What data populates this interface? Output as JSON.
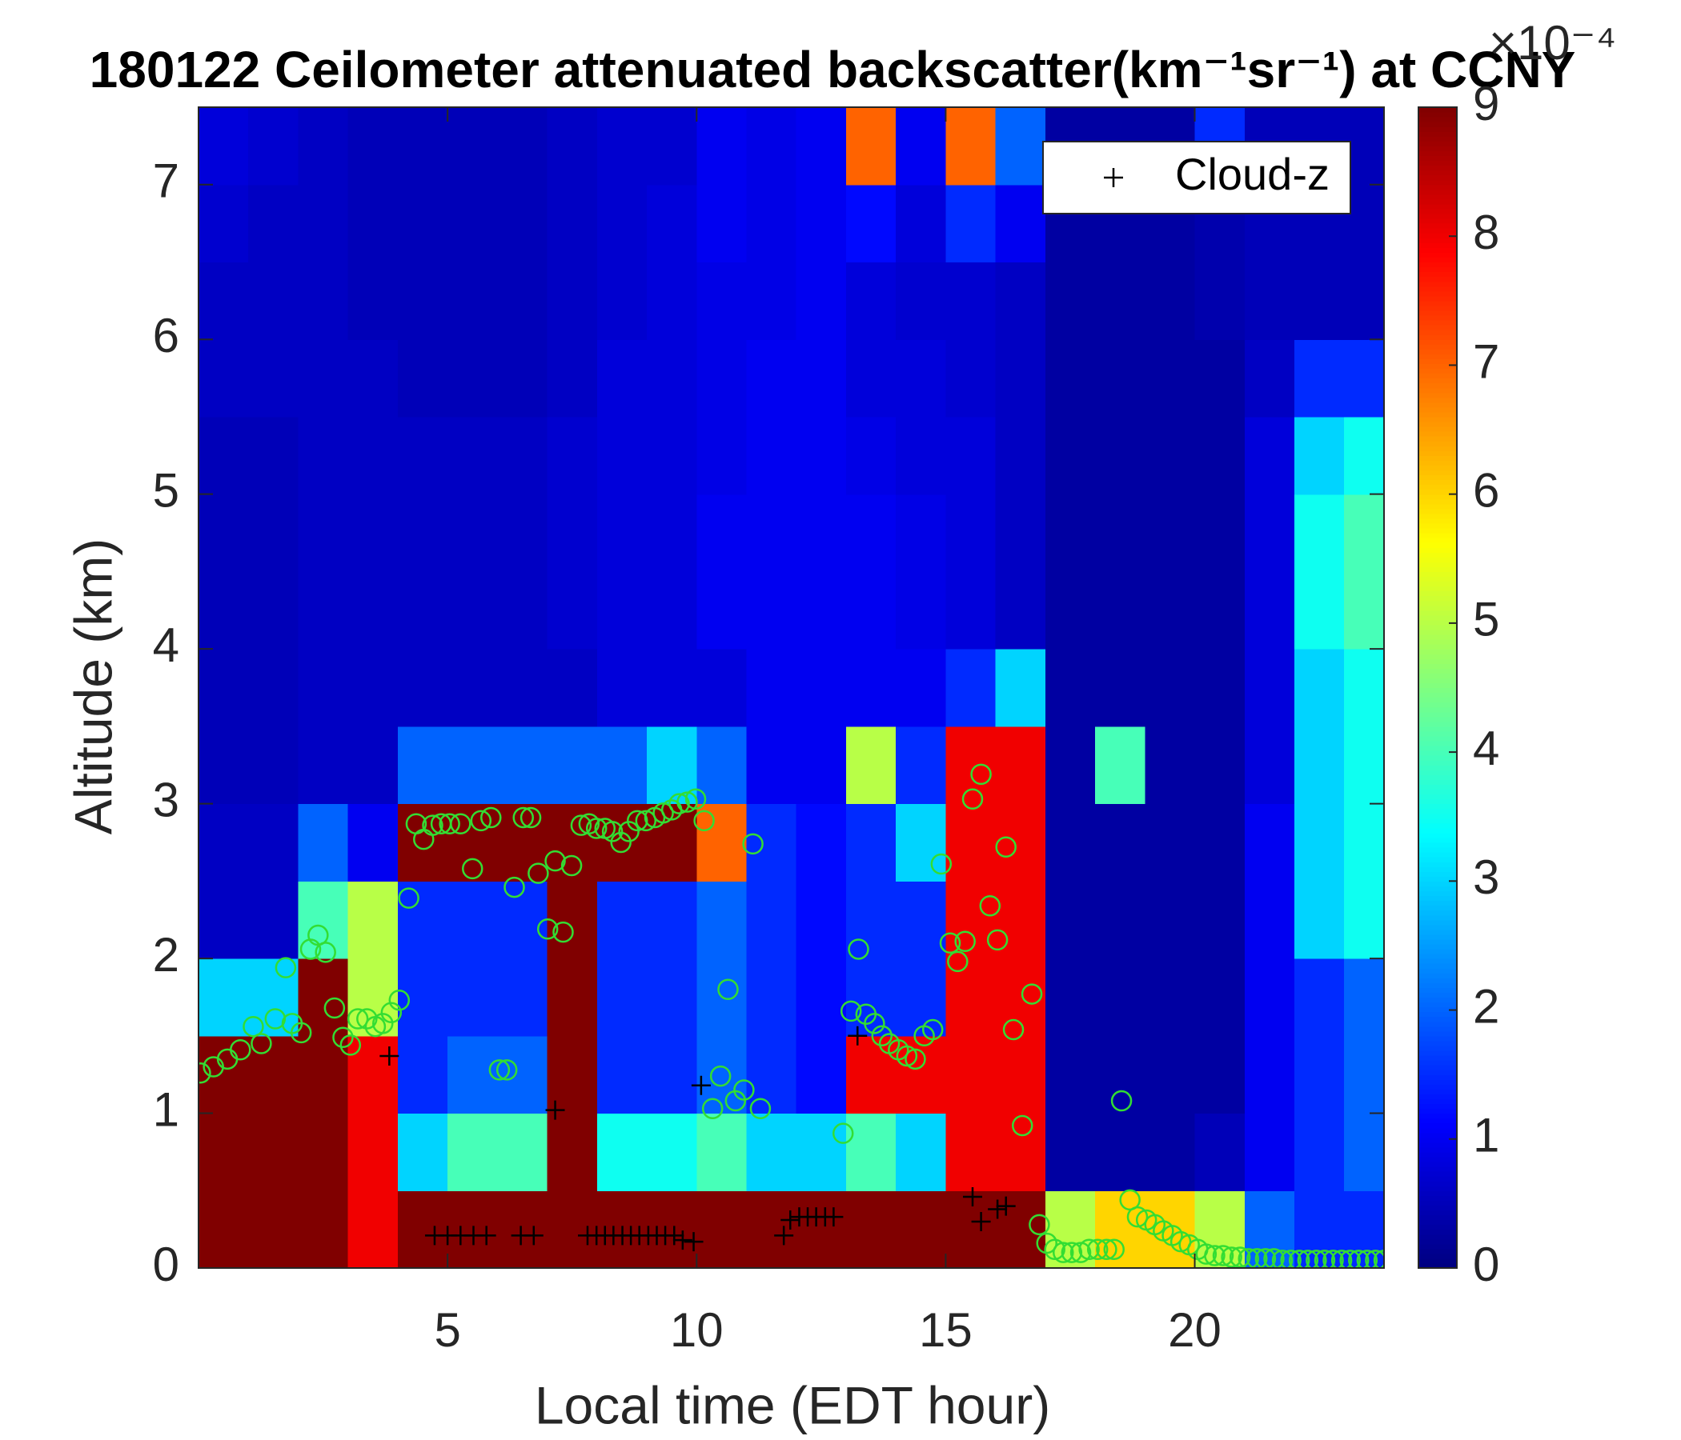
{
  "chart_data": {
    "type": "heatmap",
    "title": "180122 Ceilometer attenuated backscatter(km⁻¹sr⁻¹) at CCNY",
    "x_label": "Local time (EDT hour)",
    "y_label": "Altitude (km)",
    "xlim": [
      0,
      23.8
    ],
    "ylim": [
      0,
      7.5
    ],
    "xticks": [
      5,
      10,
      15,
      20
    ],
    "yticks": [
      0,
      1,
      2,
      3,
      4,
      5,
      6,
      7
    ],
    "colormap": "jet",
    "colorbar": {
      "lim": [
        0,
        9
      ],
      "ticks": [
        0,
        1,
        2,
        3,
        4,
        5,
        6,
        7,
        8,
        9
      ],
      "exponent_label": "×10⁻⁴"
    },
    "x": [
      0.5,
      1.5,
      2.5,
      3.5,
      4.5,
      5.5,
      6.5,
      7.5,
      8.5,
      9.5,
      10.5,
      11.5,
      12.5,
      13.5,
      14.5,
      15.5,
      16.5,
      17.5,
      18.5,
      19.5,
      20.5,
      21.5,
      22.5,
      23.5
    ],
    "y": [
      0.25,
      0.75,
      1.25,
      1.75,
      2.25,
      2.75,
      3.25,
      3.75,
      4.25,
      4.75,
      5.25,
      5.75,
      6.25,
      6.75,
      7.25
    ],
    "z": [
      [
        9,
        9,
        9,
        8,
        9,
        9,
        9,
        9,
        9,
        9,
        9,
        9,
        9,
        9,
        9,
        9,
        9,
        5,
        6,
        6,
        5,
        2,
        1.5,
        1.5
      ],
      [
        9,
        9,
        9,
        8,
        3,
        4,
        4,
        9,
        3.5,
        3.5,
        4,
        3,
        3,
        4,
        3,
        8,
        8,
        0.3,
        0.3,
        0.3,
        0.5,
        1,
        1.5,
        2
      ],
      [
        9,
        9,
        9,
        8,
        1.5,
        2,
        2,
        9,
        1.5,
        1.5,
        2,
        1.5,
        1.2,
        8,
        8,
        8,
        8,
        0.3,
        0.3,
        0.3,
        0.3,
        1,
        1.5,
        2
      ],
      [
        3,
        3,
        9,
        5,
        1.5,
        1.5,
        1.5,
        9,
        1.5,
        1.5,
        2,
        1.5,
        1.2,
        1.5,
        1.5,
        8,
        8,
        0.3,
        0.3,
        0.3,
        0.3,
        1,
        1.5,
        2
      ],
      [
        0.6,
        0.6,
        4,
        5,
        1.5,
        1.5,
        1.5,
        9,
        1.5,
        1.5,
        2,
        1.5,
        1.2,
        1.5,
        1.5,
        8,
        8,
        0.3,
        0.3,
        0.3,
        0.3,
        1,
        3,
        3.5
      ],
      [
        0.6,
        0.6,
        2,
        1,
        9,
        9,
        9,
        9,
        9,
        9,
        7,
        1.5,
        1.2,
        1.5,
        3,
        8,
        8,
        0.3,
        0.3,
        0.3,
        0.3,
        1,
        3,
        3.5
      ],
      [
        0.5,
        0.5,
        0.6,
        0.6,
        2,
        2,
        2,
        2,
        2,
        3,
        2,
        1,
        1,
        5,
        1.5,
        8,
        8,
        0.3,
        4,
        0.3,
        0.3,
        0.8,
        3,
        3.5
      ],
      [
        0.5,
        0.5,
        0.6,
        0.6,
        0.6,
        0.6,
        0.6,
        0.6,
        0.8,
        0.8,
        0.8,
        1,
        1,
        1,
        1,
        1.5,
        3,
        0.3,
        0.3,
        0.3,
        0.3,
        0.8,
        3,
        3.5
      ],
      [
        0.5,
        0.5,
        0.6,
        0.6,
        0.6,
        0.6,
        0.6,
        0.7,
        0.8,
        0.8,
        1,
        1,
        1,
        1,
        0.9,
        0.8,
        0.6,
        0.3,
        0.3,
        0.3,
        0.3,
        0.8,
        3.5,
        4
      ],
      [
        0.5,
        0.5,
        0.6,
        0.6,
        0.6,
        0.6,
        0.6,
        0.7,
        0.8,
        0.8,
        1,
        1,
        1,
        1,
        0.9,
        0.8,
        0.6,
        0.3,
        0.3,
        0.3,
        0.3,
        0.8,
        3.5,
        4
      ],
      [
        0.5,
        0.5,
        0.6,
        0.6,
        0.6,
        0.6,
        0.6,
        0.7,
        0.8,
        0.8,
        0.9,
        1,
        1,
        0.9,
        0.8,
        0.8,
        0.6,
        0.3,
        0.3,
        0.3,
        0.3,
        0.8,
        3,
        3.5
      ],
      [
        0.6,
        0.6,
        0.6,
        0.6,
        0.5,
        0.5,
        0.5,
        0.6,
        0.8,
        0.8,
        0.9,
        1,
        1,
        0.8,
        0.8,
        0.7,
        0.6,
        0.3,
        0.3,
        0.3,
        0.3,
        0.6,
        1.5,
        1.5
      ],
      [
        0.6,
        0.6,
        0.6,
        0.5,
        0.5,
        0.5,
        0.5,
        0.6,
        0.7,
        0.8,
        0.9,
        0.9,
        1,
        0.8,
        0.7,
        0.7,
        0.6,
        0.3,
        0.3,
        0.3,
        0.4,
        0.5,
        0.5,
        0.5
      ],
      [
        0.7,
        0.6,
        0.6,
        0.5,
        0.5,
        0.5,
        0.5,
        0.6,
        0.7,
        0.8,
        1,
        0.9,
        1,
        1.2,
        0.8,
        1.5,
        1,
        0.3,
        0.3,
        0.3,
        0.4,
        0.5,
        0.5,
        0.5
      ],
      [
        0.8,
        0.7,
        0.6,
        0.5,
        0.5,
        0.5,
        0.5,
        0.6,
        0.7,
        0.7,
        1,
        0.9,
        1,
        7,
        1,
        7,
        2,
        0.3,
        0.3,
        0.3,
        1.5,
        0.5,
        0.5,
        0.5
      ]
    ],
    "legend": "upper right",
    "series": [
      {
        "name": "Cloud-z",
        "marker": "plus",
        "color": "#000000",
        "x": [
          3.83,
          4.74,
          5.0,
          5.26,
          5.52,
          5.78,
          6.47,
          6.73,
          7.16,
          7.81,
          7.99,
          8.16,
          8.33,
          8.51,
          8.68,
          8.85,
          9.03,
          9.2,
          9.37,
          9.55,
          9.72,
          9.94,
          10.09,
          11.75,
          11.88,
          12.06,
          12.23,
          12.4,
          12.58,
          12.75,
          13.23,
          15.54,
          15.71,
          16.04,
          16.21
        ],
        "values": [
          1.37,
          0.21,
          0.21,
          0.21,
          0.21,
          0.21,
          0.21,
          0.21,
          1.02,
          0.21,
          0.21,
          0.21,
          0.21,
          0.21,
          0.21,
          0.21,
          0.21,
          0.21,
          0.21,
          0.21,
          0.18,
          0.17,
          1.18,
          0.21,
          0.31,
          0.33,
          0.33,
          0.33,
          0.33,
          0.33,
          1.5,
          0.46,
          0.3,
          0.38,
          0.4
        ]
      },
      {
        "marker": "circle",
        "color": "#33dd33",
        "x": [
          0.04,
          0.3,
          0.58,
          0.84,
          1.1,
          1.26,
          1.54,
          1.75,
          1.88,
          2.06,
          2.25,
          2.4,
          2.55,
          2.73,
          2.9,
          3.05,
          3.2,
          3.38,
          3.55,
          3.7,
          3.87,
          4.03,
          4.22,
          4.37,
          4.52,
          4.7,
          4.87,
          5.04,
          5.26,
          5.5,
          5.67,
          5.87,
          6.04,
          6.19,
          6.34,
          6.52,
          6.67,
          6.82,
          7.01,
          7.16,
          7.32,
          7.49,
          7.68,
          7.84,
          7.99,
          8.16,
          8.31,
          8.48,
          8.64,
          8.81,
          8.98,
          9.16,
          9.33,
          9.5,
          9.65,
          9.81,
          9.98,
          10.15,
          10.32,
          10.48,
          10.63,
          10.78,
          10.95,
          11.13,
          11.28,
          12.94,
          13.1,
          13.25,
          13.4,
          13.57,
          13.72,
          13.87,
          14.05,
          14.22,
          14.39,
          14.57,
          14.74,
          14.91,
          15.09,
          15.24,
          15.39,
          15.54,
          15.71,
          15.89,
          16.04,
          16.21,
          16.36,
          16.54,
          16.73,
          16.88,
          17.03,
          17.19,
          17.36,
          17.53,
          17.71,
          17.88,
          18.05,
          18.23,
          18.38,
          18.53,
          18.7,
          18.85,
          19.03,
          19.2,
          19.37,
          19.55,
          19.72,
          19.89,
          20.06,
          20.23,
          20.4,
          20.57,
          20.74,
          20.91,
          21.08,
          21.25,
          21.42,
          21.59,
          21.76,
          21.93,
          22.1,
          22.27,
          22.44,
          22.61,
          22.78,
          22.95,
          23.12,
          23.29,
          23.46,
          23.63,
          23.8
        ],
        "values": [
          1.26,
          1.3,
          1.35,
          1.41,
          1.56,
          1.45,
          1.61,
          1.94,
          1.58,
          1.52,
          2.06,
          2.15,
          2.04,
          1.68,
          1.49,
          1.44,
          1.61,
          1.61,
          1.56,
          1.58,
          1.65,
          1.73,
          2.39,
          2.87,
          2.77,
          2.86,
          2.87,
          2.87,
          2.87,
          2.58,
          2.89,
          2.91,
          1.28,
          1.28,
          2.46,
          2.91,
          2.91,
          2.55,
          2.19,
          2.63,
          2.17,
          2.6,
          2.86,
          2.87,
          2.84,
          2.84,
          2.82,
          2.75,
          2.82,
          2.89,
          2.89,
          2.91,
          2.94,
          2.96,
          3.0,
          3.01,
          3.03,
          2.89,
          1.03,
          1.24,
          1.8,
          1.08,
          1.15,
          2.74,
          1.03,
          0.87,
          1.66,
          2.06,
          1.64,
          1.58,
          1.5,
          1.45,
          1.41,
          1.37,
          1.35,
          1.5,
          1.54,
          2.61,
          2.1,
          1.98,
          2.11,
          3.03,
          3.19,
          2.34,
          2.12,
          2.72,
          1.54,
          0.92,
          1.77,
          0.28,
          0.16,
          0.12,
          0.1,
          0.1,
          0.1,
          0.12,
          0.12,
          0.12,
          0.12,
          1.08,
          0.44,
          0.33,
          0.31,
          0.28,
          0.24,
          0.21,
          0.17,
          0.15,
          0.12,
          0.09,
          0.08,
          0.08,
          0.07,
          0.07,
          0.06,
          0.06,
          0.06,
          0.06,
          0.05,
          0.05,
          0.05,
          0.05,
          0.05,
          0.05,
          0.05,
          0.05,
          0.05,
          0.05,
          0.05,
          0.05,
          0.05
        ]
      }
    ]
  }
}
